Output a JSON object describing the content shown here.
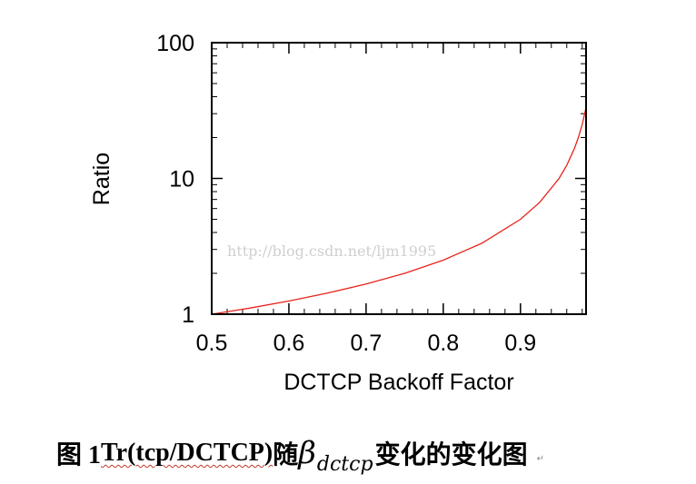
{
  "chart_data": {
    "type": "line",
    "xlabel": "DCTCP Backoff Factor",
    "ylabel": "Ratio",
    "xlim": [
      0.5,
      0.985
    ],
    "ylim": [
      1,
      100
    ],
    "yscale": "log",
    "x_ticks": [
      0.5,
      0.6,
      0.7,
      0.8,
      0.9
    ],
    "x_tick_labels": [
      "0.5",
      "0.6",
      "0.7",
      "0.8",
      "0.9"
    ],
    "y_ticks": [
      1,
      10,
      100
    ],
    "y_tick_labels": [
      "1",
      "10",
      "100"
    ],
    "grid": false,
    "series": [
      {
        "color": "#e8231b",
        "x": [
          0.5,
          0.55,
          0.6,
          0.65,
          0.7,
          0.75,
          0.8,
          0.85,
          0.9,
          0.925,
          0.95,
          0.96,
          0.97,
          0.975,
          0.98,
          0.985
        ],
        "y": [
          1.0,
          1.11,
          1.25,
          1.43,
          1.67,
          2.0,
          2.5,
          3.33,
          5.0,
          6.67,
          10.0,
          12.5,
          16.7,
          20.0,
          25.0,
          33.3
        ]
      }
    ]
  },
  "watermark": "http://blog.csdn.net/ljm1995",
  "caption": {
    "prefix": "图 1 ",
    "underlined": "Tr(tcp/DCTCP)",
    "after_paren": "随",
    "beta_symbol": "β",
    "beta_subscript": "dctcp",
    "suffix": "变化的变化图",
    "para_mark": "↵"
  }
}
